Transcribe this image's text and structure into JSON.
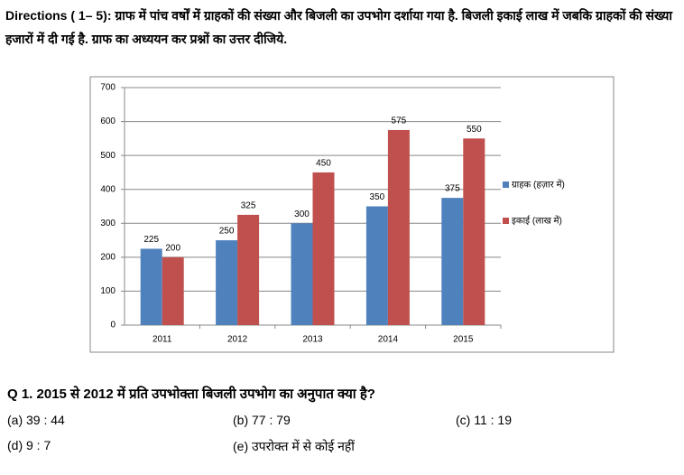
{
  "directions": "Directions ( 1– 5): ग्राफ में पांच वर्षों में ग्राहकों की संख्या और बिजली का उपभोग दर्शाया गया है. बिजली इकाई लाख में जबकि ग्राहकों की संख्या हजारों में दी गई है. ग्राफ का अध्ययन कर प्रश्नों का उत्तर दीजिये.",
  "chart_data": {
    "type": "bar",
    "categories": [
      "2011",
      "2012",
      "2013",
      "2014",
      "2015"
    ],
    "series": [
      {
        "name": "ग्राहक (हज़ार में)",
        "color": "#4f81bd",
        "values": [
          225,
          250,
          300,
          350,
          375
        ]
      },
      {
        "name": "इकाई (लाख में)",
        "color": "#c0504d",
        "values": [
          200,
          325,
          450,
          575,
          550
        ]
      }
    ],
    "ylim": [
      0,
      700
    ],
    "yticks": [
      0,
      100,
      200,
      300,
      400,
      500,
      600,
      700
    ],
    "grid": true,
    "legend": "right"
  },
  "question": "Q  1. 2015 से 2012 में प्रति उपभोक्ता बिजली उपभोग का अनुपात क्या है?",
  "options": [
    "(a) 39 : 44",
    "(b) 77 : 79",
    "(c) 11 : 19",
    "(d) 9 : 7",
    "(e) उपरोक्त में से कोई नहीं"
  ]
}
